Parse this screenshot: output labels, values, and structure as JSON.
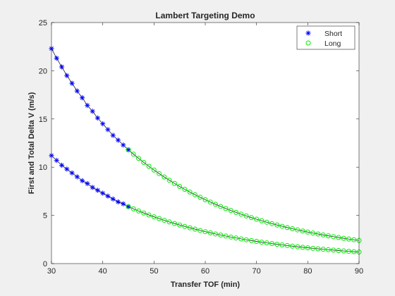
{
  "chart_data": {
    "type": "scatter",
    "title": "Lambert Targeting Demo",
    "xlabel": "Transfer TOF (min)",
    "ylabel": "First and Total Delta V (m/s)",
    "xlim": [
      30,
      90
    ],
    "ylim": [
      0,
      25
    ],
    "xticks": [
      "30",
      "40",
      "50",
      "60",
      "70",
      "80",
      "90"
    ],
    "yticks": [
      "0",
      "5",
      "10",
      "15",
      "20",
      "25"
    ],
    "grid": false,
    "legend_position": "top-right",
    "series": [
      {
        "name": "Short",
        "marker": "asterisk",
        "color": "#0000ff",
        "x_start": 30,
        "x_end": 45,
        "x_step": 1,
        "groups": [
          {
            "role": "total",
            "y": [
              22.3,
              21.3,
              20.4,
              19.5,
              18.7,
              17.9,
              17.2,
              16.4,
              15.8,
              15.1,
              14.5,
              13.9,
              13.3,
              12.8,
              12.3,
              11.8
            ]
          },
          {
            "role": "first",
            "y": [
              11.2,
              10.7,
              10.2,
              9.8,
              9.4,
              9.0,
              8.6,
              8.3,
              7.9,
              7.6,
              7.3,
              7.0,
              6.7,
              6.4,
              6.2,
              5.9
            ]
          }
        ]
      },
      {
        "name": "Long",
        "marker": "circle",
        "color": "#00ee00",
        "x_start": 45,
        "x_end": 90,
        "x_step": 1,
        "groups": [
          {
            "role": "total",
            "y_start": 11.8,
            "y_end": 2.4,
            "decay_k": 0.042
          },
          {
            "role": "first",
            "y_start": 5.9,
            "y_end": 1.2,
            "decay_k": 0.042
          }
        ]
      }
    ]
  }
}
